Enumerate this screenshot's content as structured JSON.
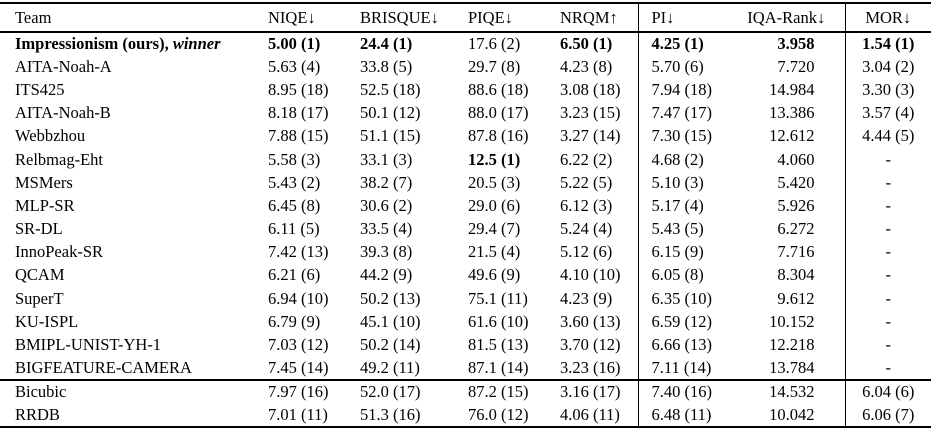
{
  "table": {
    "header": {
      "team": "Team",
      "metrics": [
        "NIQE↓",
        "BRISQUE↓",
        "PIQE↓",
        "NRQM↑",
        "PI↓",
        "IQA-Rank↓",
        "MOR↓"
      ]
    },
    "column_ids": [
      "team",
      "niqe",
      "brisque",
      "piqe",
      "nrqm",
      "pi",
      "iqa-rank",
      "mor"
    ],
    "rows": [
      {
        "team": "Impressionism (ours),",
        "team_suffix": "winner",
        "team_bold": true,
        "values": [
          "5.00 (1)",
          "24.4 (1)",
          "17.6 (2)",
          "6.50 (1)",
          "4.25 (1)",
          "3.958",
          "1.54 (1)"
        ],
        "bold": [
          true,
          true,
          false,
          true,
          true,
          true,
          true
        ]
      },
      {
        "team": "AITA-Noah-A",
        "values": [
          "5.63 (4)",
          "33.8 (5)",
          "29.7 (8)",
          "4.23 (8)",
          "5.70 (6)",
          "7.720",
          "3.04 (2)"
        ]
      },
      {
        "team": "ITS425",
        "values": [
          "8.95 (18)",
          "52.5 (18)",
          "88.6 (18)",
          "3.08 (18)",
          "7.94 (18)",
          "14.984",
          "3.30 (3)"
        ]
      },
      {
        "team": "AITA-Noah-B",
        "values": [
          "8.18 (17)",
          "50.1 (12)",
          "88.0 (17)",
          "3.23 (15)",
          "7.47 (17)",
          "13.386",
          "3.57 (4)"
        ]
      },
      {
        "team": "Webbzhou",
        "values": [
          "7.88 (15)",
          "51.1 (15)",
          "87.8 (16)",
          "3.27 (14)",
          "7.30 (15)",
          "12.612",
          "4.44 (5)"
        ]
      },
      {
        "team": "Relbmag-Eht",
        "values": [
          "5.58 (3)",
          "33.1 (3)",
          "12.5 (1)",
          "6.22 (2)",
          "4.68 (2)",
          "4.060",
          "-"
        ],
        "bold": [
          false,
          false,
          true,
          false,
          false,
          false,
          false
        ]
      },
      {
        "team": "MSMers",
        "values": [
          "5.43 (2)",
          "38.2 (7)",
          "20.5 (3)",
          "5.22 (5)",
          "5.10 (3)",
          "5.420",
          "-"
        ]
      },
      {
        "team": "MLP-SR",
        "values": [
          "6.45 (8)",
          "30.6 (2)",
          "29.0 (6)",
          "6.12 (3)",
          "5.17 (4)",
          "5.926",
          "-"
        ]
      },
      {
        "team": "SR-DL",
        "values": [
          "6.11 (5)",
          "33.5 (4)",
          "29.4 (7)",
          "5.24 (4)",
          "5.43 (5)",
          "6.272",
          "-"
        ]
      },
      {
        "team": "InnoPeak-SR",
        "values": [
          "7.42 (13)",
          "39.3 (8)",
          "21.5 (4)",
          "5.12 (6)",
          "6.15 (9)",
          "7.716",
          "-"
        ]
      },
      {
        "team": "QCAM",
        "values": [
          "6.21 (6)",
          "44.2 (9)",
          "49.6 (9)",
          "4.10 (10)",
          "6.05 (8)",
          "8.304",
          "-"
        ]
      },
      {
        "team": "SuperT",
        "values": [
          "6.94 (10)",
          "50.2 (13)",
          "75.1 (11)",
          "4.23 (9)",
          "6.35 (10)",
          "9.612",
          "-"
        ]
      },
      {
        "team": "KU-ISPL",
        "values": [
          "6.79 (9)",
          "45.1 (10)",
          "61.6 (10)",
          "3.60 (13)",
          "6.59 (12)",
          "10.152",
          "-"
        ]
      },
      {
        "team": "BMIPL-UNIST-YH-1",
        "values": [
          "7.03 (12)",
          "50.2 (14)",
          "81.5 (13)",
          "3.70 (12)",
          "6.66 (13)",
          "12.218",
          "-"
        ]
      },
      {
        "team": "BIGFEATURE-CAMERA",
        "values": [
          "7.45 (14)",
          "49.2 (11)",
          "87.1 (14)",
          "3.23 (16)",
          "7.11 (14)",
          "13.784",
          "-"
        ]
      }
    ],
    "baseline_rows": [
      {
        "team": "Bicubic",
        "values": [
          "7.97 (16)",
          "52.0 (17)",
          "87.2 (15)",
          "3.16 (17)",
          "7.40 (16)",
          "14.532",
          "6.04 (6)"
        ]
      },
      {
        "team": "RRDB",
        "values": [
          "7.01 (11)",
          "51.3 (16)",
          "76.0 (12)",
          "4.06 (11)",
          "6.48 (11)",
          "10.042",
          "6.06 (7)"
        ]
      }
    ]
  },
  "colors": {
    "text": "#000000",
    "background": "#ffffff",
    "rule": "#000000"
  }
}
